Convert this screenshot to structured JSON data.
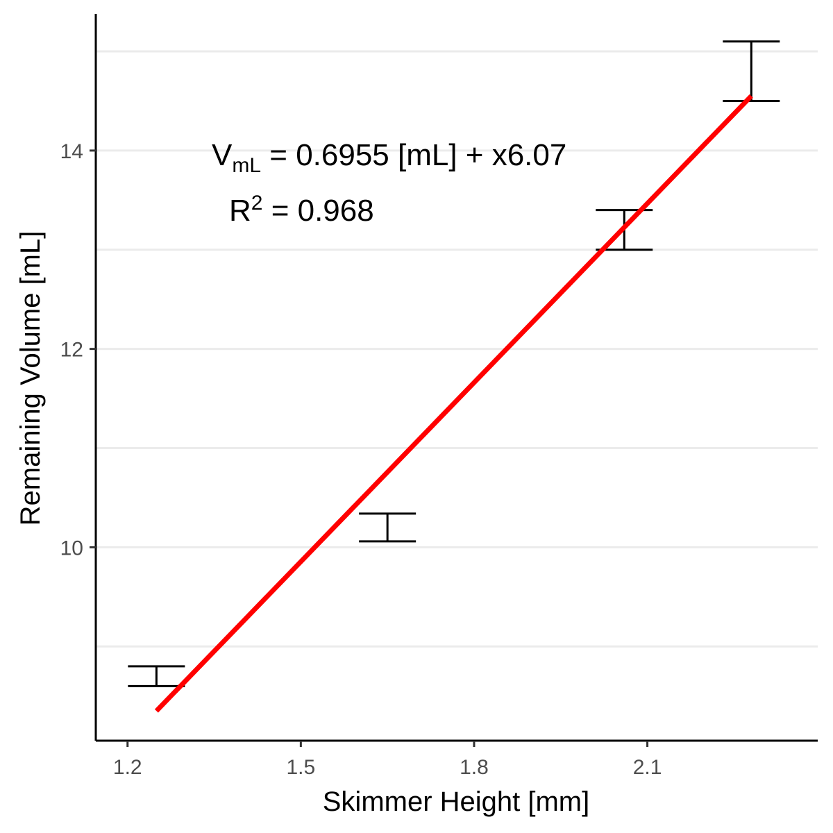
{
  "chart_data": {
    "type": "scatter",
    "xlabel": "Skimmer Height [mm]",
    "ylabel": "Remaining Volume [mL]",
    "xlim": [
      1.145,
      2.395
    ],
    "ylim": [
      8.05,
      15.42
    ],
    "x_ticks": [
      1.2,
      1.5,
      1.8,
      2.1
    ],
    "x_tick_labels": [
      "1.2",
      "1.5",
      "1.8",
      "2.1"
    ],
    "y_ticks": [
      10,
      12,
      14
    ],
    "y_tick_labels": [
      "10",
      "12",
      "14"
    ],
    "y_minor_grid": [
      9,
      11,
      13,
      15
    ],
    "grid": "horizontal",
    "legend": "none",
    "error_bars": [
      {
        "x": 1.25,
        "ymin": 8.6,
        "ymax": 8.8
      },
      {
        "x": 1.65,
        "ymin": 10.06,
        "ymax": 10.34
      },
      {
        "x": 2.06,
        "ymin": 13.0,
        "ymax": 13.4
      },
      {
        "x": 2.28,
        "ymin": 14.5,
        "ymax": 15.1
      }
    ],
    "fit_line": {
      "x": [
        1.25,
        2.28
      ],
      "y": [
        8.35,
        14.55
      ],
      "color": "#ff0000"
    },
    "annotation": {
      "eq_lhs": "V",
      "eq_lhs_sub": "mL",
      "eq_rhs": " = 0.6955 [mL] + x6.07",
      "r2_label": "R",
      "r2_sup": "2",
      "r2_rhs": " = 0.968"
    },
    "colors": {
      "errorbar": "#000000",
      "fit": "#ff0000",
      "grid": "#ebebeb",
      "axis": "#000000"
    }
  }
}
